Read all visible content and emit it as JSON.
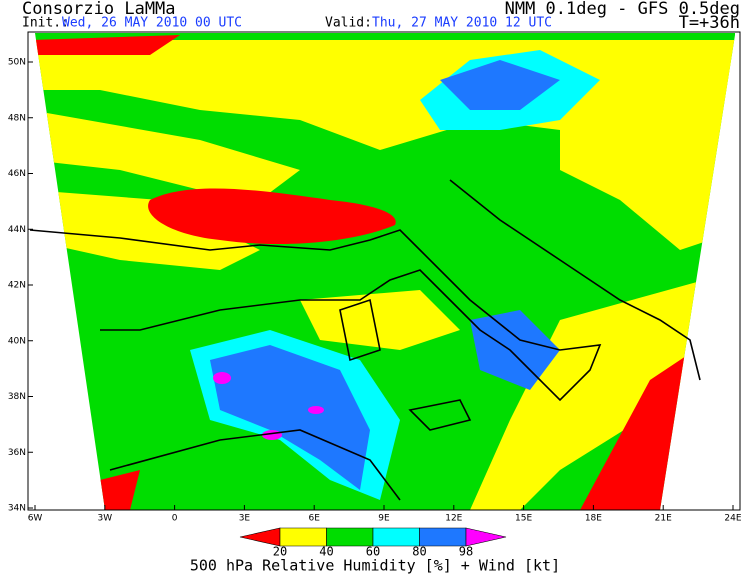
{
  "header": {
    "title": "Consorzio LaMMa",
    "model": "NMM 0.1deg - GFS 0.5deg",
    "init_label": "Init.:",
    "init_value": "Wed, 26 MAY 2010  00 UTC",
    "valid_label": "Valid:",
    "valid_value": "Thu, 27 MAY 2010  12 UTC",
    "lead": "T=+36h"
  },
  "map": {
    "lat_labels": [
      "50N",
      "48N",
      "46N",
      "44N",
      "42N",
      "40N",
      "38N",
      "36N",
      "34N"
    ],
    "lon_labels": [
      "6W",
      "3W",
      "0",
      "3E",
      "6E",
      "9E",
      "12E",
      "15E",
      "18E",
      "21E",
      "24E"
    ]
  },
  "legend": {
    "title": "500 hPa Relative Humidity [%] + Wind [kt]",
    "ticks": [
      "20",
      "40",
      "60",
      "80",
      "98"
    ],
    "colors": [
      "#ff0000",
      "#ffff00",
      "#00dd00",
      "#00ffff",
      "#1e78ff",
      "#ff00ff"
    ]
  }
}
